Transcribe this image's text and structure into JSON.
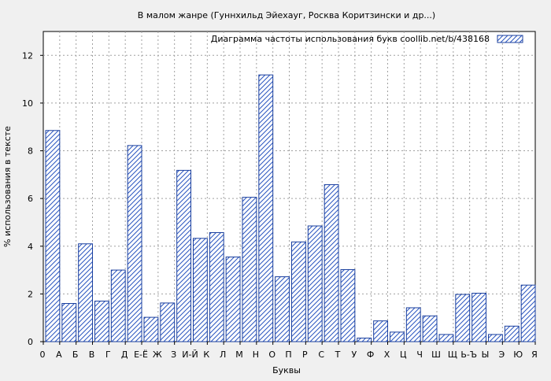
{
  "chart_data": {
    "type": "bar",
    "title": "В малом жанре (Гуннхильд Эйехауг, Росква Коритзински и др...)",
    "xlabel": "Буквы",
    "ylabel": "% использования в тексте",
    "legend": {
      "label": "Диаграмма частоты использования букв  coollib.net/b/438168",
      "position": "top-right"
    },
    "ylim": [
      0,
      13
    ],
    "yticks": [
      "0",
      "2",
      "4",
      "6",
      "8",
      "10",
      "12"
    ],
    "grid": true,
    "x_tick_labels": [
      "0",
      "А",
      "Б",
      "В",
      "Г",
      "Д",
      "Е-Ё",
      "Ж",
      "З",
      "И-Й",
      "К",
      "Л",
      "М",
      "Н",
      "О",
      "П",
      "Р",
      "С",
      "Т",
      "У",
      "Ф",
      "Х",
      "Ц",
      "Ч",
      "Ш",
      "Щ",
      "Ь-Ъ",
      "Ы",
      "Э",
      "Ю",
      "Я"
    ],
    "categories": [
      "А",
      "Б",
      "В",
      "Г",
      "Д",
      "Е-Ё",
      "Ж",
      "З",
      "И-Й",
      "К",
      "Л",
      "М",
      "Н",
      "О",
      "П",
      "Р",
      "С",
      "Т",
      "У",
      "Ф",
      "Х",
      "Ц",
      "Ч",
      "Ш",
      "Щ",
      "Ь-Ъ",
      "Ы",
      "Э",
      "Ю",
      "Я"
    ],
    "values": [
      8.85,
      1.6,
      4.1,
      1.7,
      3.0,
      8.22,
      1.02,
      1.62,
      7.18,
      4.33,
      4.57,
      3.55,
      6.05,
      11.18,
      2.72,
      4.18,
      4.85,
      6.58,
      3.02,
      0.15,
      0.87,
      0.4,
      1.42,
      1.08,
      0.3,
      1.98,
      2.03,
      0.3,
      0.65,
      2.37
    ],
    "colors": {
      "bar_stroke": "#1a3f9e",
      "hatch": "#2a55c0",
      "background": "#f0f0f0",
      "plot_bg": "#ffffff",
      "grid": "#a0a0a0"
    }
  }
}
